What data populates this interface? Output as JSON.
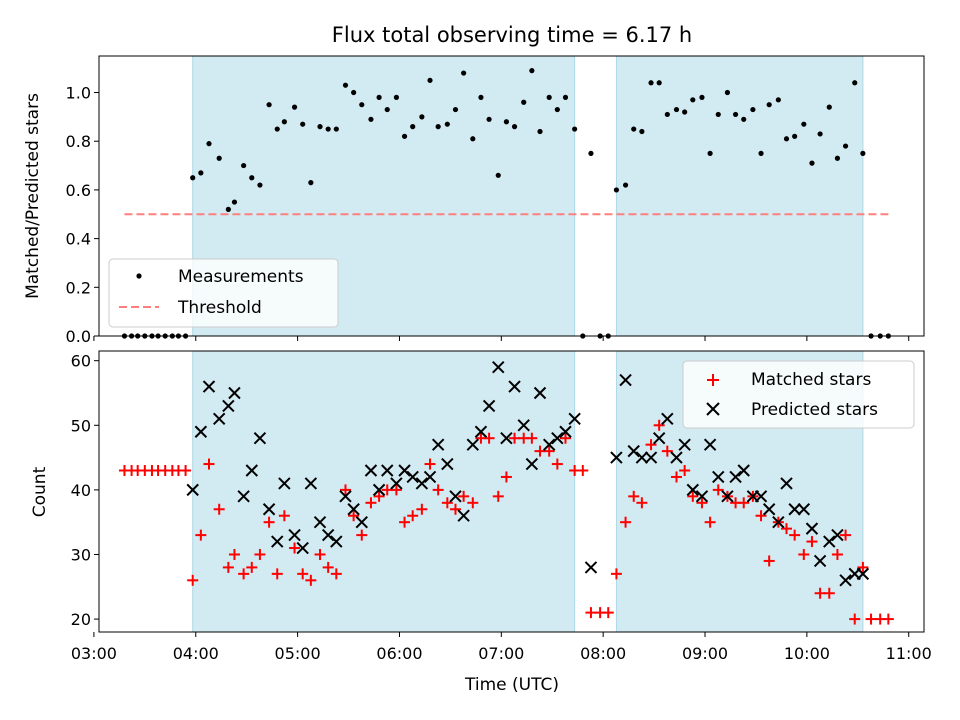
{
  "chart_data": [
    {
      "type": "scatter",
      "title": "Flux total observing time = 6.17 h",
      "xlabel": "",
      "ylabel": "Matched/Predicted stars",
      "ylim": [
        0,
        1.15
      ],
      "xlim": [
        3.05,
        11.15
      ],
      "yticks": [
        "0.0",
        "0.2",
        "0.4",
        "0.6",
        "0.8",
        "1.0"
      ],
      "ytick_values": [
        0,
        0.2,
        0.4,
        0.6,
        0.8,
        1.0
      ],
      "legend_position": "lower-left",
      "shaded_intervals": [
        [
          3.97,
          7.72
        ],
        [
          8.13,
          10.55
        ]
      ],
      "colors": {
        "shade": "#add8e6",
        "measurements": "#000000",
        "threshold": "#ff7f7f"
      },
      "series": [
        {
          "name": "Measurements",
          "x": [
            3.3,
            3.37,
            3.43,
            3.5,
            3.57,
            3.63,
            3.7,
            3.77,
            3.83,
            3.9,
            3.97,
            4.05,
            4.13,
            4.23,
            4.32,
            4.38,
            4.47,
            4.55,
            4.63,
            4.72,
            4.8,
            4.87,
            4.97,
            5.05,
            5.13,
            5.22,
            5.3,
            5.38,
            5.47,
            5.55,
            5.63,
            5.72,
            5.8,
            5.88,
            5.97,
            6.05,
            6.13,
            6.22,
            6.3,
            6.38,
            6.47,
            6.55,
            6.63,
            6.72,
            6.8,
            6.88,
            6.97,
            7.05,
            7.13,
            7.22,
            7.3,
            7.38,
            7.47,
            7.55,
            7.63,
            7.72,
            7.8,
            7.88,
            7.97,
            8.05,
            8.13,
            8.22,
            8.3,
            8.38,
            8.47,
            8.55,
            8.63,
            8.72,
            8.8,
            8.88,
            8.97,
            9.05,
            9.13,
            9.22,
            9.3,
            9.38,
            9.47,
            9.55,
            9.63,
            9.72,
            9.8,
            9.88,
            9.97,
            10.05,
            10.13,
            10.22,
            10.3,
            10.38,
            10.47,
            10.55,
            10.63,
            10.72,
            10.8
          ],
          "y": [
            0,
            0,
            0,
            0,
            0,
            0,
            0,
            0,
            0,
            0,
            0.65,
            0.67,
            0.79,
            0.73,
            0.52,
            0.55,
            0.7,
            0.65,
            0.62,
            0.95,
            0.85,
            0.88,
            0.94,
            0.87,
            0.63,
            0.86,
            0.85,
            0.85,
            1.03,
            1.0,
            0.95,
            0.89,
            0.98,
            0.93,
            0.98,
            0.82,
            0.86,
            0.9,
            1.05,
            0.86,
            0.87,
            0.93,
            1.08,
            0.81,
            0.98,
            0.89,
            0.66,
            0.88,
            0.86,
            0.96,
            1.09,
            0.84,
            0.98,
            0.93,
            0.98,
            0.85,
            0,
            0.75,
            0,
            0,
            0.6,
            0.62,
            0.85,
            0.84,
            1.04,
            1.04,
            0.91,
            0.93,
            0.92,
            0.97,
            0.98,
            0.75,
            0.91,
            1.0,
            0.91,
            0.89,
            0.93,
            0.75,
            0.95,
            0.97,
            0.81,
            0.82,
            0.87,
            0.71,
            0.83,
            0.94,
            0.73,
            0.78,
            1.04,
            0.75,
            0,
            0,
            0
          ]
        },
        {
          "name": "Threshold",
          "x": [
            3.3,
            10.8
          ],
          "y": [
            0.5,
            0.5
          ]
        }
      ]
    },
    {
      "type": "scatter",
      "title": "",
      "xlabel": "Time (UTC)",
      "ylabel": "Count",
      "ylim": [
        18,
        61.5
      ],
      "xlim": [
        3.05,
        11.15
      ],
      "yticks": [
        "20",
        "30",
        "40",
        "50",
        "60"
      ],
      "ytick_values": [
        20,
        30,
        40,
        50,
        60
      ],
      "xticks": [
        "03:00",
        "04:00",
        "05:00",
        "06:00",
        "07:00",
        "08:00",
        "09:00",
        "10:00",
        "11:00"
      ],
      "xtick_values": [
        3,
        4,
        5,
        6,
        7,
        8,
        9,
        10,
        11
      ],
      "legend_position": "top-right",
      "shaded_intervals": [
        [
          3.97,
          7.72
        ],
        [
          8.13,
          10.55
        ]
      ],
      "colors": {
        "shade": "#add8e6",
        "matched": "#ff0000",
        "predicted": "#000000"
      },
      "series": [
        {
          "name": "Matched stars",
          "x": [
            3.3,
            3.37,
            3.43,
            3.5,
            3.57,
            3.63,
            3.7,
            3.77,
            3.83,
            3.9,
            3.97,
            4.05,
            4.13,
            4.23,
            4.32,
            4.38,
            4.47,
            4.55,
            4.63,
            4.72,
            4.8,
            4.87,
            4.97,
            5.05,
            5.13,
            5.22,
            5.3,
            5.38,
            5.47,
            5.55,
            5.63,
            5.72,
            5.8,
            5.88,
            5.97,
            6.05,
            6.13,
            6.22,
            6.3,
            6.38,
            6.47,
            6.55,
            6.63,
            6.72,
            6.8,
            6.88,
            6.97,
            7.05,
            7.13,
            7.22,
            7.3,
            7.38,
            7.47,
            7.55,
            7.63,
            7.72,
            7.8,
            7.88,
            7.97,
            8.05,
            8.13,
            8.22,
            8.3,
            8.38,
            8.47,
            8.55,
            8.63,
            8.72,
            8.8,
            8.88,
            8.97,
            9.05,
            9.13,
            9.22,
            9.3,
            9.38,
            9.47,
            9.55,
            9.63,
            9.72,
            9.8,
            9.88,
            9.97,
            10.05,
            10.13,
            10.22,
            10.3,
            10.38,
            10.47,
            10.55,
            10.63,
            10.72,
            10.8
          ],
          "y": [
            43,
            43,
            43,
            43,
            43,
            43,
            43,
            43,
            43,
            43,
            26,
            33,
            44,
            37,
            28,
            30,
            27,
            28,
            30,
            35,
            27,
            36,
            31,
            27,
            26,
            30,
            28,
            27,
            40,
            36,
            33,
            38,
            39,
            40,
            40,
            35,
            36,
            37,
            44,
            40,
            38,
            37,
            39,
            38,
            48,
            48,
            39,
            42,
            48,
            48,
            48,
            46,
            46,
            44,
            48,
            43,
            43,
            21,
            21,
            21,
            27,
            35,
            39,
            38,
            47,
            50,
            46,
            42,
            43,
            39,
            38,
            35,
            40,
            39,
            38,
            38,
            39,
            36,
            29,
            35,
            34,
            33,
            30,
            32,
            24,
            24,
            30,
            33,
            20,
            28,
            20,
            20,
            20
          ]
        },
        {
          "name": "Predicted stars",
          "x": [
            3.97,
            4.05,
            4.13,
            4.23,
            4.32,
            4.38,
            4.47,
            4.55,
            4.63,
            4.72,
            4.8,
            4.87,
            4.97,
            5.05,
            5.13,
            5.22,
            5.3,
            5.38,
            5.47,
            5.55,
            5.63,
            5.72,
            5.8,
            5.88,
            5.97,
            6.05,
            6.13,
            6.22,
            6.3,
            6.38,
            6.47,
            6.55,
            6.63,
            6.72,
            6.8,
            6.88,
            6.97,
            7.05,
            7.13,
            7.22,
            7.3,
            7.38,
            7.47,
            7.55,
            7.63,
            7.72,
            7.88,
            8.13,
            8.22,
            8.3,
            8.38,
            8.47,
            8.55,
            8.63,
            8.72,
            8.8,
            8.88,
            8.97,
            9.05,
            9.13,
            9.22,
            9.3,
            9.38,
            9.47,
            9.55,
            9.63,
            9.72,
            9.8,
            9.88,
            9.97,
            10.05,
            10.13,
            10.22,
            10.3,
            10.38,
            10.47,
            10.55
          ],
          "y": [
            40,
            49,
            56,
            51,
            53,
            55,
            39,
            43,
            48,
            37,
            32,
            41,
            33,
            31,
            41,
            35,
            33,
            32,
            39,
            37,
            35,
            43,
            40,
            43,
            41,
            43,
            42,
            41,
            42,
            47,
            44,
            39,
            36,
            47,
            49,
            53,
            59,
            48,
            56,
            50,
            44,
            55,
            47,
            48,
            49,
            51,
            28,
            45,
            57,
            46,
            45,
            45,
            48,
            51,
            45,
            47,
            40,
            39,
            47,
            42,
            39,
            42,
            43,
            39,
            39,
            37,
            35,
            41,
            37,
            37,
            34,
            29,
            32,
            33,
            26,
            27,
            27
          ]
        }
      ]
    }
  ]
}
